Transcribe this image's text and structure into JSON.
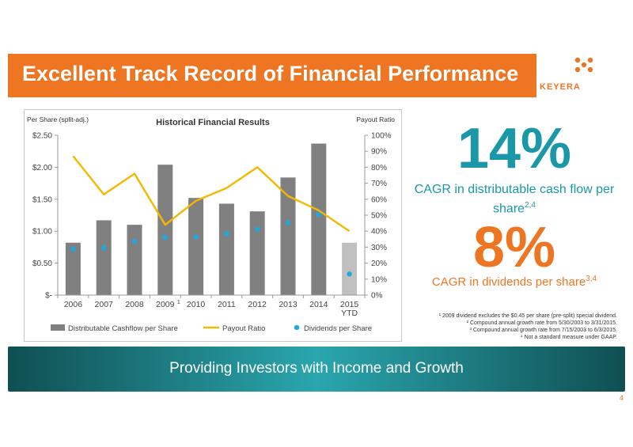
{
  "colors": {
    "orange": "#ee7623",
    "teal": "#1a98a8",
    "bar": "#808080",
    "bar_ytd": "#c0c0c0",
    "payout_line": "#f5b800",
    "dividend_dot": "#1ea8de",
    "banner_dark": "#0f4f52",
    "banner_light": "#2aa6ae"
  },
  "header": {
    "title": "Excellent Track Record of Financial Performance",
    "logo_text": "KEYERA"
  },
  "stats": {
    "cagr_cash": "14%",
    "cagr_cash_label": "CAGR in distributable cash flow per share",
    "cagr_cash_sup": "2,4",
    "cagr_div": "8%",
    "cagr_div_label": "CAGR in dividends per share",
    "cagr_div_sup": "3,4"
  },
  "footnotes": [
    "¹ 2009 dividend excludes the $0.45 per share (pre-split) special dividend.",
    "² Compound annual growth rate from 5/30/2003 to 3/31/2015.",
    "³ Compound annual growth rate from 7/15/2003 to 6/3/2015.",
    "⁴ Not a standard measure under GAAP."
  ],
  "banner": {
    "text": "Providing Investors with Income and Growth"
  },
  "page_number": "4",
  "chart_data": {
    "type": "bar",
    "title": "Historical Financial Results",
    "ylabel_left": "Per Share (split-adj.)",
    "ylabel_right": "Payout Ratio",
    "categories": [
      "2006",
      "2007",
      "2008",
      "2009",
      "2010",
      "2011",
      "2012",
      "2013",
      "2014",
      "2015 YTD"
    ],
    "category_lines": [
      [
        "2006"
      ],
      [
        "2007"
      ],
      [
        "2008"
      ],
      [
        "2009"
      ],
      [
        "2010"
      ],
      [
        "2011"
      ],
      [
        "2012"
      ],
      [
        "2013"
      ],
      [
        "2014"
      ],
      [
        "2015",
        "YTD"
      ]
    ],
    "category_note": {
      "index": 3,
      "text": "1"
    },
    "ylim_left": [
      0,
      2.5
    ],
    "ylim_right": [
      0,
      100
    ],
    "left_ticks": [
      {
        "v": 0,
        "label": "$-"
      },
      {
        "v": 0.5,
        "label": "$0.50"
      },
      {
        "v": 1.0,
        "label": "$1.00"
      },
      {
        "v": 1.5,
        "label": "$1.50"
      },
      {
        "v": 2.0,
        "label": "$2.00"
      },
      {
        "v": 2.5,
        "label": "$2.50"
      }
    ],
    "right_ticks": [
      {
        "v": 0,
        "label": "0%"
      },
      {
        "v": 10,
        "label": "10%"
      },
      {
        "v": 20,
        "label": "20%"
      },
      {
        "v": 30,
        "label": "30%"
      },
      {
        "v": 40,
        "label": "40%"
      },
      {
        "v": 50,
        "label": "50%"
      },
      {
        "v": 60,
        "label": "60%"
      },
      {
        "v": 70,
        "label": "70%"
      },
      {
        "v": 80,
        "label": "80%"
      },
      {
        "v": 90,
        "label": "90%"
      },
      {
        "v": 100,
        "label": "100%"
      }
    ],
    "series": [
      {
        "name": "Distributable Cashflow per Share",
        "type": "bar",
        "axis": "left",
        "values": [
          0.82,
          1.17,
          1.1,
          2.04,
          1.52,
          1.43,
          1.31,
          1.84,
          2.37,
          0.82
        ]
      },
      {
        "name": "Payout Ratio",
        "type": "line",
        "axis": "right",
        "values": [
          87,
          63,
          76,
          44,
          59,
          67,
          80,
          62,
          53,
          40
        ]
      },
      {
        "name": "Dividends per Share",
        "type": "scatter",
        "axis": "left",
        "values": [
          0.72,
          0.74,
          0.84,
          0.9,
          0.91,
          0.96,
          1.03,
          1.13,
          1.26,
          0.33
        ]
      }
    ],
    "ytd_index": 9,
    "grid": false,
    "legend_position": "bottom"
  }
}
